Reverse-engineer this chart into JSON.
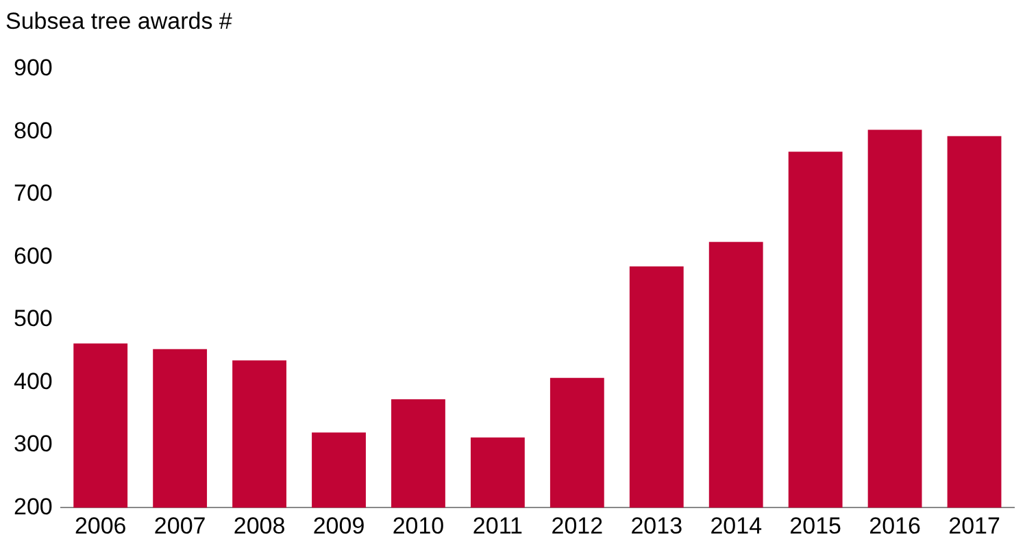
{
  "chart_data": {
    "type": "bar",
    "title": "Subsea tree awards #",
    "categories": [
      "2006",
      "2007",
      "2008",
      "2009",
      "2010",
      "2011",
      "2012",
      "2013",
      "2014",
      "2015",
      "2016",
      "2017"
    ],
    "values": [
      462,
      453,
      435,
      320,
      373,
      312,
      407,
      585,
      624,
      768,
      803,
      793
    ],
    "color": "#c10435",
    "ylim": [
      200,
      900
    ],
    "yticks": [
      200,
      300,
      400,
      500,
      600,
      700,
      800,
      900
    ],
    "grid": false,
    "legend": false
  }
}
